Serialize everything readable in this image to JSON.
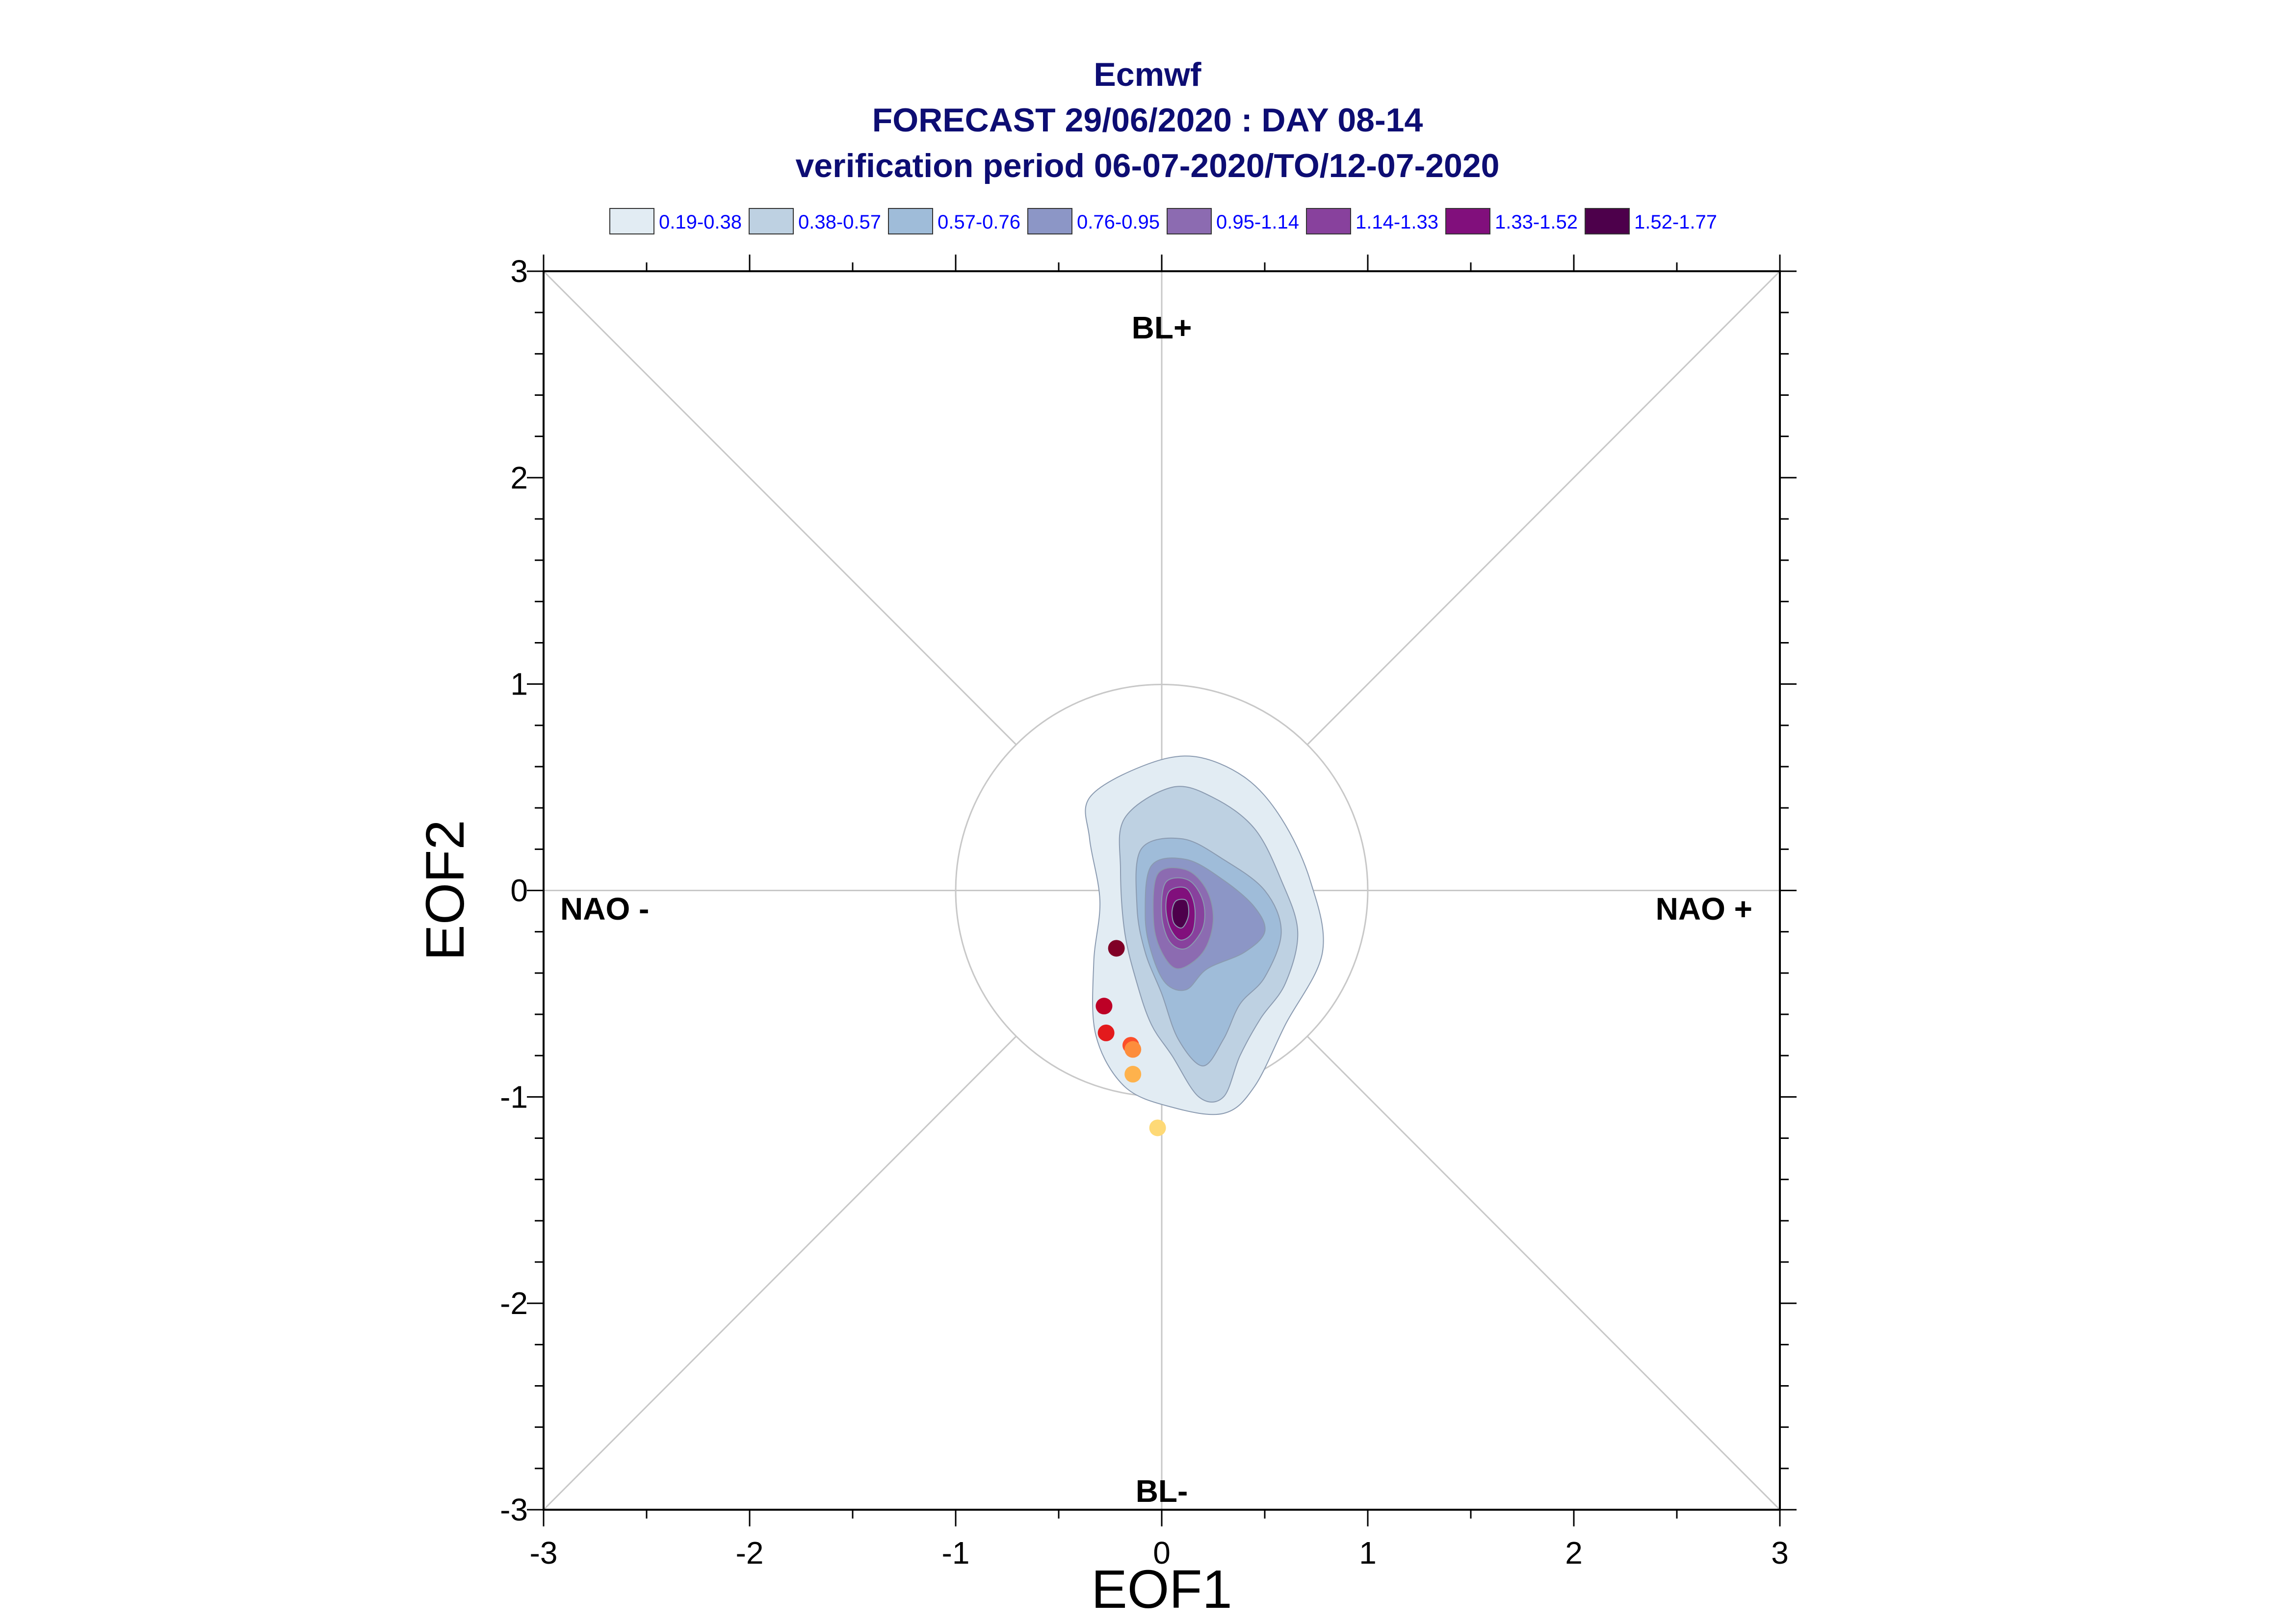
{
  "chart_data": {
    "type": "scatter",
    "title": [
      "Ecmwf",
      "FORECAST 29/06/2020 : DAY 08-14",
      "verification period 06-07-2020/TO/12-07-2020"
    ],
    "xlabel": "EOF1",
    "ylabel": "EOF2",
    "xlim": [
      -3,
      3
    ],
    "ylim": [
      -3,
      3
    ],
    "xticks": [
      "-3",
      "-2",
      "-1",
      "0",
      "1",
      "2",
      "3"
    ],
    "yticks": [
      "-3",
      "-2",
      "-1",
      "0",
      "1",
      "2",
      "3"
    ],
    "grid": false,
    "reference_circle_radius": 1,
    "regime_labels": {
      "top": "BL+",
      "bottom": "BL-",
      "left": "NAO -",
      "right": "NAO +"
    },
    "legend": {
      "placement": "top",
      "entries": [
        {
          "label": "0.19-0.38",
          "color": "#e2ecf3"
        },
        {
          "label": "0.38-0.57",
          "color": "#bed1e2"
        },
        {
          "label": "0.57-0.76",
          "color": "#9fbcd9"
        },
        {
          "label": "0.76-0.95",
          "color": "#8c96c6"
        },
        {
          "label": "0.95-1.14",
          "color": "#8c6bb1"
        },
        {
          "label": "1.14-1.33",
          "color": "#88419d"
        },
        {
          "label": "1.33-1.52",
          "color": "#810f7c"
        },
        {
          "label": "1.52-1.77",
          "color": "#4d004b"
        }
      ]
    },
    "density_levels": [
      {
        "level": "0.19-0.38",
        "color": "#e2ecf3",
        "contour": [
          [
            -0.35,
            0.45
          ],
          [
            -0.1,
            0.6
          ],
          [
            0.15,
            0.65
          ],
          [
            0.4,
            0.55
          ],
          [
            0.58,
            0.35
          ],
          [
            0.72,
            0.05
          ],
          [
            0.78,
            -0.3
          ],
          [
            0.6,
            -0.65
          ],
          [
            0.45,
            -0.95
          ],
          [
            0.3,
            -1.08
          ],
          [
            0.05,
            -1.05
          ],
          [
            -0.18,
            -0.95
          ],
          [
            -0.32,
            -0.7
          ],
          [
            -0.33,
            -0.35
          ],
          [
            -0.3,
            -0.05
          ],
          [
            -0.35,
            0.25
          ]
        ]
      },
      {
        "level": "0.38-0.57",
        "color": "#bed1e2",
        "contour": [
          [
            -0.18,
            0.35
          ],
          [
            0.05,
            0.5
          ],
          [
            0.25,
            0.45
          ],
          [
            0.45,
            0.3
          ],
          [
            0.58,
            0.05
          ],
          [
            0.66,
            -0.2
          ],
          [
            0.6,
            -0.45
          ],
          [
            0.48,
            -0.62
          ],
          [
            0.38,
            -0.8
          ],
          [
            0.3,
            -1.0
          ],
          [
            0.18,
            -1.0
          ],
          [
            0.05,
            -0.8
          ],
          [
            -0.05,
            -0.65
          ],
          [
            -0.12,
            -0.45
          ],
          [
            -0.18,
            -0.2
          ],
          [
            -0.2,
            0.1
          ]
        ]
      },
      {
        "level": "0.57-0.76",
        "color": "#9fbcd9",
        "contour": [
          [
            -0.1,
            0.2
          ],
          [
            0.1,
            0.25
          ],
          [
            0.3,
            0.15
          ],
          [
            0.5,
            0.0
          ],
          [
            0.58,
            -0.2
          ],
          [
            0.5,
            -0.42
          ],
          [
            0.38,
            -0.55
          ],
          [
            0.3,
            -0.72
          ],
          [
            0.2,
            -0.85
          ],
          [
            0.08,
            -0.72
          ],
          [
            0.0,
            -0.5
          ],
          [
            -0.08,
            -0.3
          ],
          [
            -0.12,
            -0.08
          ]
        ]
      },
      {
        "level": "0.76-0.95",
        "color": "#8c96c6",
        "contour": [
          [
            -0.05,
            0.12
          ],
          [
            0.12,
            0.15
          ],
          [
            0.3,
            0.05
          ],
          [
            0.45,
            -0.08
          ],
          [
            0.5,
            -0.2
          ],
          [
            0.4,
            -0.3
          ],
          [
            0.22,
            -0.38
          ],
          [
            0.12,
            -0.48
          ],
          [
            0.02,
            -0.45
          ],
          [
            -0.05,
            -0.3
          ],
          [
            -0.08,
            -0.12
          ]
        ]
      },
      {
        "level": "0.95-1.14",
        "color": "#8c6bb1",
        "contour": [
          [
            -0.02,
            0.08
          ],
          [
            0.12,
            0.1
          ],
          [
            0.22,
            0.0
          ],
          [
            0.25,
            -0.15
          ],
          [
            0.2,
            -0.3
          ],
          [
            0.08,
            -0.38
          ],
          [
            0.0,
            -0.3
          ],
          [
            -0.04,
            -0.15
          ]
        ]
      },
      {
        "level": "1.14-1.33",
        "color": "#88419d",
        "contour": [
          [
            0.02,
            0.04
          ],
          [
            0.13,
            0.05
          ],
          [
            0.2,
            -0.05
          ],
          [
            0.2,
            -0.18
          ],
          [
            0.12,
            -0.28
          ],
          [
            0.04,
            -0.25
          ],
          [
            0.0,
            -0.12
          ]
        ]
      },
      {
        "level": "1.33-1.52",
        "color": "#810f7c",
        "contour": [
          [
            0.04,
            0.0
          ],
          [
            0.12,
            0.01
          ],
          [
            0.16,
            -0.08
          ],
          [
            0.15,
            -0.2
          ],
          [
            0.09,
            -0.24
          ],
          [
            0.04,
            -0.18
          ],
          [
            0.02,
            -0.08
          ]
        ]
      },
      {
        "level": "1.52-1.77",
        "color": "#4d004b",
        "contour": [
          [
            0.07,
            -0.05
          ],
          [
            0.12,
            -0.05
          ],
          [
            0.13,
            -0.12
          ],
          [
            0.1,
            -0.18
          ],
          [
            0.06,
            -0.16
          ],
          [
            0.05,
            -0.1
          ]
        ]
      }
    ],
    "points": [
      {
        "x": -0.22,
        "y": -0.28,
        "color": "#800026"
      },
      {
        "x": -0.28,
        "y": -0.56,
        "color": "#bd0026"
      },
      {
        "x": -0.27,
        "y": -0.69,
        "color": "#e31a1c"
      },
      {
        "x": -0.15,
        "y": -0.75,
        "color": "#fc4e2a"
      },
      {
        "x": -0.14,
        "y": -0.77,
        "color": "#fd8d3c"
      },
      {
        "x": -0.14,
        "y": -0.89,
        "color": "#feb24c"
      },
      {
        "x": -0.02,
        "y": -1.15,
        "color": "#fed976"
      }
    ]
  }
}
